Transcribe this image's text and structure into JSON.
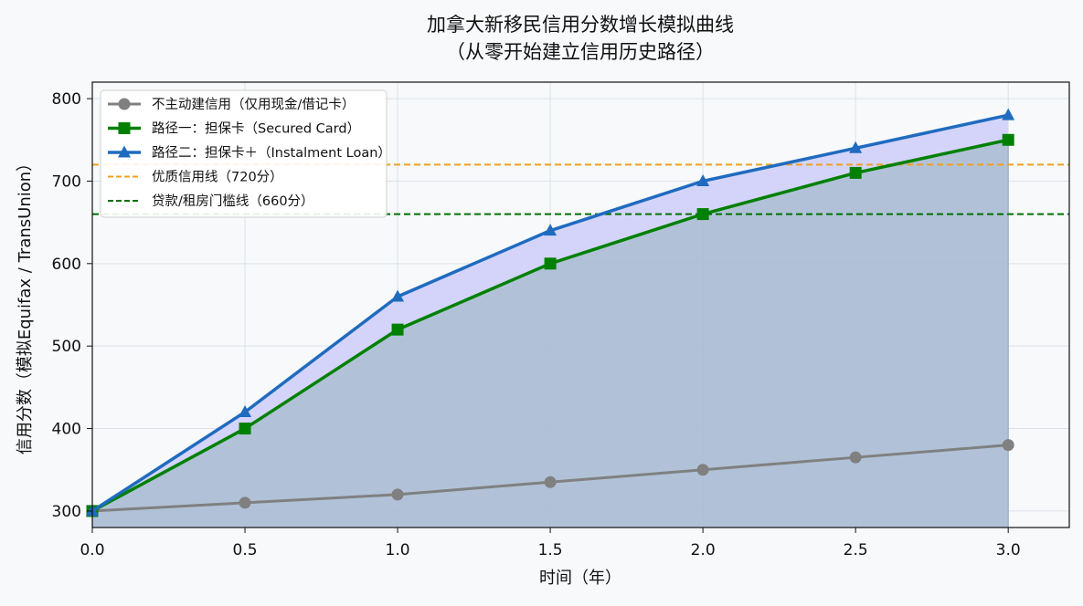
{
  "chart_data": {
    "type": "line",
    "title_line1": "加拿大新移民信用分数增长模拟曲线",
    "title_line2": "（从零开始建立信用历史路径）",
    "xlabel": "时间（年）",
    "ylabel": "信用分数（模拟Equifax / TransUnion）",
    "xlim": [
      0.0,
      3.2
    ],
    "ylim": [
      280,
      820
    ],
    "x_ticks": [
      "0.0",
      "0.5",
      "1.0",
      "1.5",
      "2.0",
      "2.5",
      "3.0"
    ],
    "y_ticks": [
      "300",
      "400",
      "500",
      "600",
      "700",
      "800"
    ],
    "grid": true,
    "legend_position": "top-left",
    "x": [
      0.0,
      0.5,
      1.0,
      1.5,
      2.0,
      2.5,
      3.0
    ],
    "series": [
      {
        "name": "不主动建信用（仅用现金/借记卡）",
        "values": [
          300,
          310,
          320,
          335,
          350,
          365,
          380
        ],
        "color": "#808080",
        "marker": "circle"
      },
      {
        "name": "路径一：担保卡（Secured Card）",
        "values": [
          300,
          400,
          520,
          600,
          660,
          710,
          750
        ],
        "color": "#008000",
        "marker": "square"
      },
      {
        "name": "路径二：担保卡＋（Instalment Loan）",
        "values": [
          300,
          420,
          560,
          640,
          700,
          740,
          780
        ],
        "color": "#1f6bbf",
        "marker": "triangle"
      }
    ],
    "reference_lines": [
      {
        "label": "优质信用线（720分）",
        "value": 720,
        "color": "#f0a020"
      },
      {
        "label": "贷款/租房门槛线（660分）",
        "value": 660,
        "color": "#007000"
      }
    ],
    "fill_under_color": "#a9bbd4",
    "fill_between_color": "#d4d4fb"
  }
}
